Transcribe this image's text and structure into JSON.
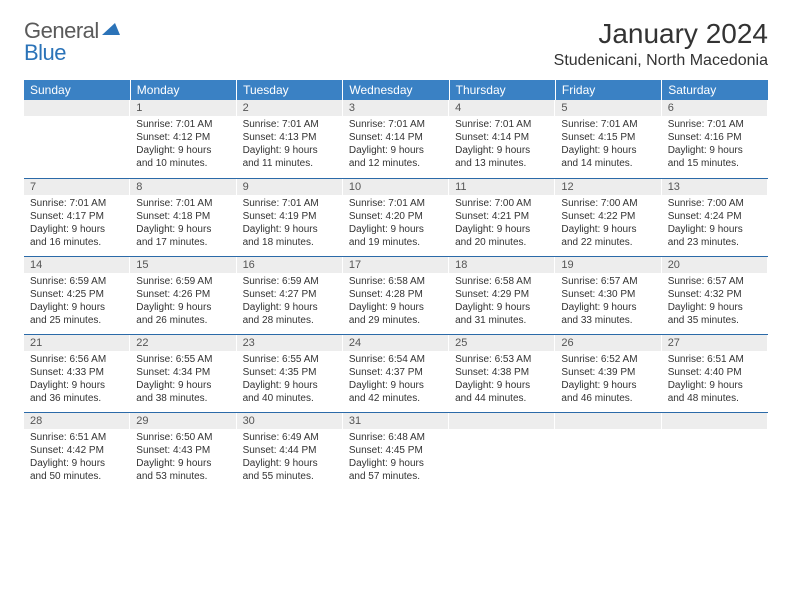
{
  "logo": {
    "general": "General",
    "blue": "Blue"
  },
  "title": "January 2024",
  "location": "Studenicani, North Macedonia",
  "header_bg": "#3a81c4",
  "header_fg": "#ffffff",
  "row_border": "#2b6aa8",
  "daynum_bg": "#ededed",
  "days": [
    "Sunday",
    "Monday",
    "Tuesday",
    "Wednesday",
    "Thursday",
    "Friday",
    "Saturday"
  ],
  "weeks": [
    [
      null,
      {
        "n": "1",
        "sr": "7:01 AM",
        "ss": "4:12 PM",
        "dl": "9 hours and 10 minutes."
      },
      {
        "n": "2",
        "sr": "7:01 AM",
        "ss": "4:13 PM",
        "dl": "9 hours and 11 minutes."
      },
      {
        "n": "3",
        "sr": "7:01 AM",
        "ss": "4:14 PM",
        "dl": "9 hours and 12 minutes."
      },
      {
        "n": "4",
        "sr": "7:01 AM",
        "ss": "4:14 PM",
        "dl": "9 hours and 13 minutes."
      },
      {
        "n": "5",
        "sr": "7:01 AM",
        "ss": "4:15 PM",
        "dl": "9 hours and 14 minutes."
      },
      {
        "n": "6",
        "sr": "7:01 AM",
        "ss": "4:16 PM",
        "dl": "9 hours and 15 minutes."
      }
    ],
    [
      {
        "n": "7",
        "sr": "7:01 AM",
        "ss": "4:17 PM",
        "dl": "9 hours and 16 minutes."
      },
      {
        "n": "8",
        "sr": "7:01 AM",
        "ss": "4:18 PM",
        "dl": "9 hours and 17 minutes."
      },
      {
        "n": "9",
        "sr": "7:01 AM",
        "ss": "4:19 PM",
        "dl": "9 hours and 18 minutes."
      },
      {
        "n": "10",
        "sr": "7:01 AM",
        "ss": "4:20 PM",
        "dl": "9 hours and 19 minutes."
      },
      {
        "n": "11",
        "sr": "7:00 AM",
        "ss": "4:21 PM",
        "dl": "9 hours and 20 minutes."
      },
      {
        "n": "12",
        "sr": "7:00 AM",
        "ss": "4:22 PM",
        "dl": "9 hours and 22 minutes."
      },
      {
        "n": "13",
        "sr": "7:00 AM",
        "ss": "4:24 PM",
        "dl": "9 hours and 23 minutes."
      }
    ],
    [
      {
        "n": "14",
        "sr": "6:59 AM",
        "ss": "4:25 PM",
        "dl": "9 hours and 25 minutes."
      },
      {
        "n": "15",
        "sr": "6:59 AM",
        "ss": "4:26 PM",
        "dl": "9 hours and 26 minutes."
      },
      {
        "n": "16",
        "sr": "6:59 AM",
        "ss": "4:27 PM",
        "dl": "9 hours and 28 minutes."
      },
      {
        "n": "17",
        "sr": "6:58 AM",
        "ss": "4:28 PM",
        "dl": "9 hours and 29 minutes."
      },
      {
        "n": "18",
        "sr": "6:58 AM",
        "ss": "4:29 PM",
        "dl": "9 hours and 31 minutes."
      },
      {
        "n": "19",
        "sr": "6:57 AM",
        "ss": "4:30 PM",
        "dl": "9 hours and 33 minutes."
      },
      {
        "n": "20",
        "sr": "6:57 AM",
        "ss": "4:32 PM",
        "dl": "9 hours and 35 minutes."
      }
    ],
    [
      {
        "n": "21",
        "sr": "6:56 AM",
        "ss": "4:33 PM",
        "dl": "9 hours and 36 minutes."
      },
      {
        "n": "22",
        "sr": "6:55 AM",
        "ss": "4:34 PM",
        "dl": "9 hours and 38 minutes."
      },
      {
        "n": "23",
        "sr": "6:55 AM",
        "ss": "4:35 PM",
        "dl": "9 hours and 40 minutes."
      },
      {
        "n": "24",
        "sr": "6:54 AM",
        "ss": "4:37 PM",
        "dl": "9 hours and 42 minutes."
      },
      {
        "n": "25",
        "sr": "6:53 AM",
        "ss": "4:38 PM",
        "dl": "9 hours and 44 minutes."
      },
      {
        "n": "26",
        "sr": "6:52 AM",
        "ss": "4:39 PM",
        "dl": "9 hours and 46 minutes."
      },
      {
        "n": "27",
        "sr": "6:51 AM",
        "ss": "4:40 PM",
        "dl": "9 hours and 48 minutes."
      }
    ],
    [
      {
        "n": "28",
        "sr": "6:51 AM",
        "ss": "4:42 PM",
        "dl": "9 hours and 50 minutes."
      },
      {
        "n": "29",
        "sr": "6:50 AM",
        "ss": "4:43 PM",
        "dl": "9 hours and 53 minutes."
      },
      {
        "n": "30",
        "sr": "6:49 AM",
        "ss": "4:44 PM",
        "dl": "9 hours and 55 minutes."
      },
      {
        "n": "31",
        "sr": "6:48 AM",
        "ss": "4:45 PM",
        "dl": "9 hours and 57 minutes."
      },
      null,
      null,
      null
    ]
  ]
}
